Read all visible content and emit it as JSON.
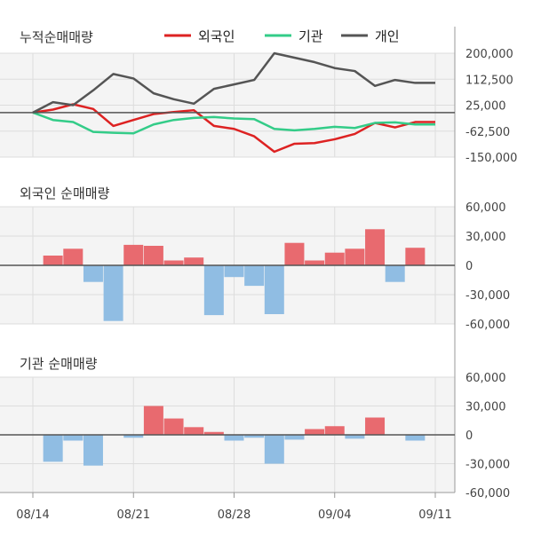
{
  "panels": {
    "cumulative": {
      "title": "누적순매매량"
    },
    "foreign": {
      "title": "외국인 순매매량"
    },
    "institution": {
      "title": "기관 순매매량"
    }
  },
  "legend": [
    {
      "label": "외국인",
      "color": "#dd2222"
    },
    {
      "label": "기관",
      "color": "#33cc88"
    },
    {
      "label": "개인",
      "color": "#555555"
    }
  ],
  "colors": {
    "positive_bar": "#e86a6f",
    "negative_bar": "#90bde3",
    "grid": "#dddddd",
    "panel_bg": "#f4f4f4"
  },
  "chart_data": [
    {
      "type": "line",
      "title": "누적순매매량",
      "x": [
        "08/14",
        "08/15",
        "08/16",
        "08/17",
        "08/20",
        "08/21",
        "08/22",
        "08/23",
        "08/24",
        "08/27",
        "08/28",
        "08/29",
        "08/30",
        "08/31",
        "09/03",
        "09/04",
        "09/05",
        "09/06",
        "09/07",
        "09/10",
        "09/11"
      ],
      "x_tick_labels": [
        "08/14",
        "08/21",
        "08/28",
        "09/04",
        "09/11"
      ],
      "y_tick_labels": [
        "200,000",
        "112,500",
        "25,000",
        "-62,500",
        "-150,000"
      ],
      "ylim": [
        -150000,
        200000
      ],
      "series": [
        {
          "name": "외국인",
          "color": "#dd2222",
          "values": [
            0,
            10000,
            28000,
            12000,
            -45000,
            -25000,
            -5000,
            2000,
            8000,
            -45000,
            -55000,
            -80000,
            -132000,
            -105000,
            -103000,
            -90000,
            -72000,
            -35000,
            -50000,
            -32000,
            -32000
          ]
        },
        {
          "name": "기관",
          "color": "#33cc88",
          "values": [
            0,
            -25000,
            -32000,
            -65000,
            -68000,
            -70000,
            -40000,
            -25000,
            -18000,
            -15000,
            -20000,
            -22000,
            -55000,
            -60000,
            -55000,
            -48000,
            -52000,
            -35000,
            -33000,
            -40000,
            -40000
          ]
        },
        {
          "name": "개인",
          "color": "#555555",
          "values": [
            0,
            35000,
            25000,
            75000,
            130000,
            115000,
            65000,
            45000,
            30000,
            80000,
            95000,
            110000,
            200000,
            185000,
            170000,
            150000,
            140000,
            90000,
            110000,
            100000,
            100000
          ]
        }
      ]
    },
    {
      "type": "bar",
      "title": "외국인 순매매량",
      "x": [
        "08/14",
        "08/15",
        "08/16",
        "08/17",
        "08/20",
        "08/21",
        "08/22",
        "08/23",
        "08/24",
        "08/27",
        "08/28",
        "08/29",
        "08/30",
        "08/31",
        "09/03",
        "09/04",
        "09/05",
        "09/06",
        "09/07",
        "09/10",
        "09/11"
      ],
      "x_tick_labels": [
        "08/14",
        "08/21",
        "08/28",
        "09/04",
        "09/11"
      ],
      "y_tick_labels": [
        "60,000",
        "30,000",
        "0",
        "-30,000",
        "-60,000"
      ],
      "ylim": [
        -60000,
        60000
      ],
      "values": [
        null,
        10000,
        17000,
        -17000,
        -57000,
        21000,
        20000,
        5000,
        8000,
        -51000,
        -12000,
        -21000,
        -50000,
        23000,
        5000,
        13000,
        17000,
        37000,
        -17000,
        18000,
        null
      ]
    },
    {
      "type": "bar",
      "title": "기관 순매매량",
      "x": [
        "08/14",
        "08/15",
        "08/16",
        "08/17",
        "08/20",
        "08/21",
        "08/22",
        "08/23",
        "08/24",
        "08/27",
        "08/28",
        "08/29",
        "08/30",
        "08/31",
        "09/03",
        "09/04",
        "09/05",
        "09/06",
        "09/07",
        "09/10",
        "09/11"
      ],
      "x_tick_labels": [
        "08/14",
        "08/21",
        "08/28",
        "09/04",
        "09/11"
      ],
      "y_tick_labels": [
        "60,000",
        "30,000",
        "0",
        "-30,000",
        "-60,000"
      ],
      "ylim": [
        -60000,
        60000
      ],
      "values": [
        null,
        -28000,
        -6000,
        -32000,
        null,
        -3000,
        30000,
        17000,
        8000,
        3000,
        -6000,
        -3000,
        -30000,
        -5000,
        6000,
        9000,
        -4000,
        18000,
        null,
        -6000,
        null
      ]
    }
  ]
}
